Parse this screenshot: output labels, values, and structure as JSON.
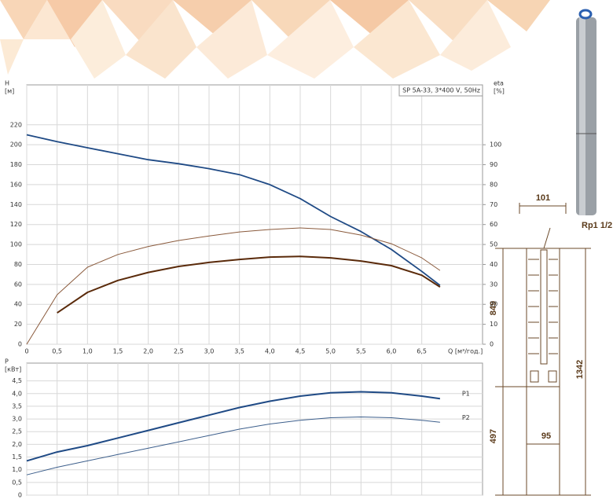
{
  "chart_data": [
    {
      "type": "line",
      "title": "SP 5A-33, 3*400 V, 50Hz",
      "y_label": [
        "H",
        "[м]"
      ],
      "y2_label": [
        "eta",
        "[%]"
      ],
      "x_label": "Q [м³/год.]",
      "x": [
        0,
        0.5,
        1.0,
        1.5,
        2.0,
        2.5,
        3.0,
        3.5,
        4.0,
        4.5,
        5.0,
        5.5,
        6.0,
        6.5,
        6.8
      ],
      "xlim": [
        0,
        7.5
      ],
      "xticks": [
        0,
        {
          "value": 0.5,
          "label": "0,5"
        },
        {
          "value": 1.0,
          "label": "1,0"
        },
        {
          "value": 1.5,
          "label": "1,5"
        },
        {
          "value": 2.0,
          "label": "2,0"
        },
        {
          "value": 2.5,
          "label": "2,5"
        },
        {
          "value": 3.0,
          "label": "3,0"
        },
        {
          "value": 3.5,
          "label": "3,5"
        },
        {
          "value": 4.0,
          "label": "4,0"
        },
        {
          "value": 4.5,
          "label": "4,5"
        },
        {
          "value": 5.0,
          "label": "5,0"
        },
        {
          "value": 5.5,
          "label": "5,5"
        },
        {
          "value": 6.0,
          "label": "6,0"
        },
        {
          "value": 6.5,
          "label": "6,5"
        }
      ],
      "ylim": [
        0,
        260
      ],
      "yticks": [
        0,
        20,
        40,
        60,
        80,
        100,
        120,
        140,
        160,
        180,
        200,
        220
      ],
      "y2lim": [
        0,
        130
      ],
      "y2ticks": [
        0,
        10,
        20,
        30,
        40,
        50,
        60,
        70,
        80,
        90,
        100
      ],
      "grid": true,
      "series": [
        {
          "color": "#1f4a85",
          "values": [
            210,
            203,
            197,
            191,
            185,
            181,
            176,
            170,
            160,
            146,
            128,
            113,
            95,
            73,
            59
          ]
        },
        {
          "color": "#8a5a3c",
          "axis": "y2",
          "values": [
            0,
            24.8,
            38.6,
            45,
            49,
            52,
            54.3,
            56.3,
            57.5,
            58.3,
            57.5,
            54.7,
            50.4,
            43.3,
            37
          ]
        },
        {
          "color": "#5a2a0a",
          "axis": "y2",
          "values": [
            null,
            15.7,
            26,
            32,
            36,
            39,
            41,
            42.5,
            43.7,
            44,
            43.3,
            41.7,
            39.4,
            34.6,
            28.7
          ]
        }
      ]
    },
    {
      "type": "line",
      "y_label": [
        "P",
        "[кВт]"
      ],
      "x": [
        0,
        0.5,
        1.0,
        1.5,
        2.0,
        2.5,
        3.0,
        3.5,
        4.0,
        4.5,
        5.0,
        5.5,
        6.0,
        6.5,
        6.8
      ],
      "xlim": [
        0,
        7.5
      ],
      "ylim": [
        0,
        5.2
      ],
      "yticks": [
        0,
        {
          "value": 0.5,
          "label": "0,5"
        },
        {
          "value": 1.0,
          "label": "1,0"
        },
        {
          "value": 1.5,
          "label": "1,5"
        },
        {
          "value": 2.0,
          "label": "2,0"
        },
        {
          "value": 2.5,
          "label": "2,5"
        },
        {
          "value": 3.0,
          "label": "3,0"
        },
        {
          "value": 3.5,
          "label": "3,5"
        },
        {
          "value": 4.0,
          "label": "4,0"
        },
        {
          "value": 4.5,
          "label": "4,5"
        }
      ],
      "grid": true,
      "series": [
        {
          "name": "P1",
          "color": "#1f4a85",
          "values": [
            1.35,
            1.7,
            1.95,
            2.25,
            2.55,
            2.85,
            3.15,
            3.45,
            3.7,
            3.9,
            4.03,
            4.07,
            4.03,
            3.9,
            3.8
          ]
        },
        {
          "name": "P2",
          "color": "#3d5f8c",
          "values": [
            0.8,
            1.1,
            1.35,
            1.6,
            1.85,
            2.1,
            2.35,
            2.6,
            2.8,
            2.95,
            3.05,
            3.08,
            3.05,
            2.95,
            2.87
          ]
        }
      ]
    }
  ],
  "drawing": {
    "top_width": 101,
    "thread": "Rp1 1/2",
    "motor_height": 849,
    "total_height": 1342,
    "pump_height": 497,
    "diameter": 95
  }
}
